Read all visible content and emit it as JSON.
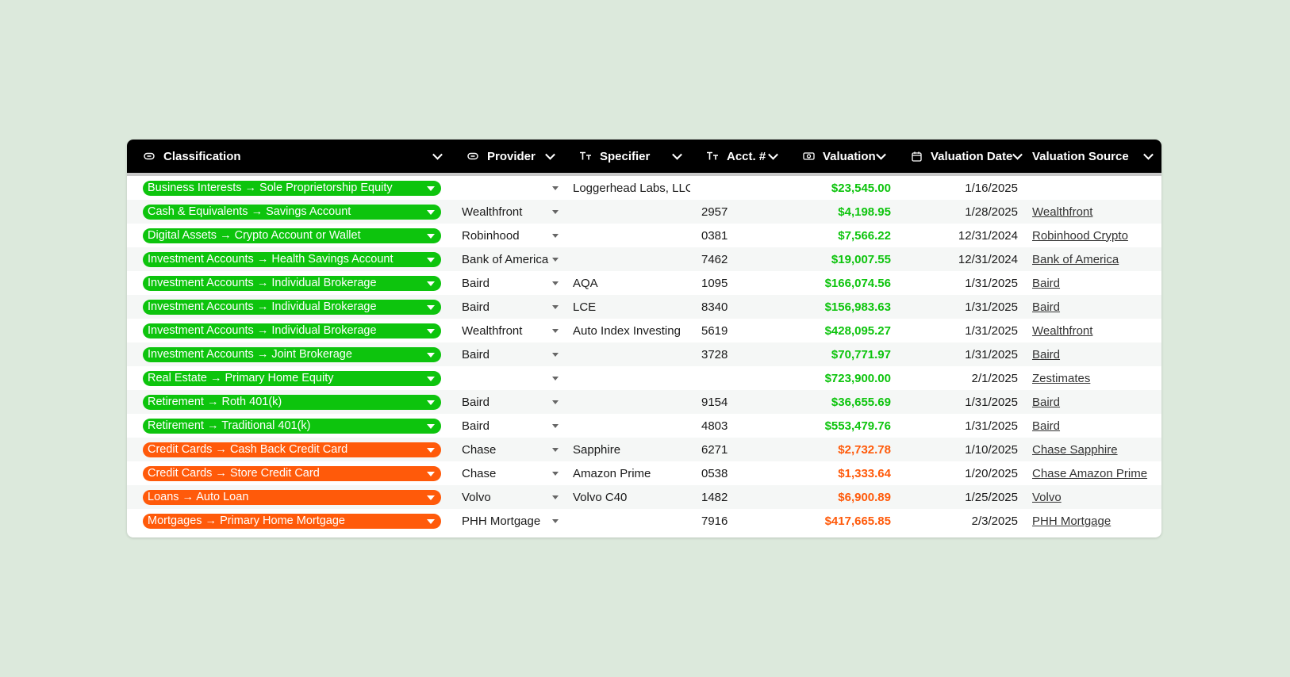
{
  "columns": {
    "classification": {
      "label": "Classification",
      "icon": "link-icon"
    },
    "provider": {
      "label": "Provider",
      "icon": "link-icon"
    },
    "specifier": {
      "label": "Specifier",
      "icon": "text-icon"
    },
    "account": {
      "label": "Acct. #",
      "icon": "text-icon"
    },
    "valuation": {
      "label": "Valuation",
      "icon": "money-icon"
    },
    "valuation_date": {
      "label": "Valuation Date",
      "icon": "calendar-icon"
    },
    "valuation_source": {
      "label": "Valuation Source"
    }
  },
  "colors": {
    "asset": "#0dc40d",
    "liability": "#ff5a0a",
    "header_bg": "#000000",
    "page_bg": "#dce9dc"
  },
  "rows": [
    {
      "classification": "Business Interests → Sole Proprietorship Equity",
      "type": "asset",
      "provider": "",
      "specifier": "Loggerhead Labs, LLC",
      "account": "",
      "valuation": "$23,545.00",
      "date": "1/16/2025",
      "source": ""
    },
    {
      "classification": "Cash & Equivalents → Savings Account",
      "type": "asset",
      "provider": "Wealthfront",
      "specifier": "",
      "account": "2957",
      "valuation": "$4,198.95",
      "date": "1/28/2025",
      "source": "Wealthfront"
    },
    {
      "classification": "Digital Assets → Crypto Account or Wallet",
      "type": "asset",
      "provider": "Robinhood",
      "specifier": "",
      "account": "0381",
      "valuation": "$7,566.22",
      "date": "12/31/2024",
      "source": "Robinhood Crypto"
    },
    {
      "classification": "Investment Accounts → Health Savings Account",
      "type": "asset",
      "provider": "Bank of America",
      "specifier": "",
      "account": "7462",
      "valuation": "$19,007.55",
      "date": "12/31/2024",
      "source": "Bank of America"
    },
    {
      "classification": "Investment Accounts → Individual Brokerage",
      "type": "asset",
      "provider": "Baird",
      "specifier": "AQA",
      "account": "1095",
      "valuation": "$166,074.56",
      "date": "1/31/2025",
      "source": "Baird"
    },
    {
      "classification": "Investment Accounts → Individual Brokerage",
      "type": "asset",
      "provider": "Baird",
      "specifier": "LCE",
      "account": "8340",
      "valuation": "$156,983.63",
      "date": "1/31/2025",
      "source": "Baird"
    },
    {
      "classification": "Investment Accounts → Individual Brokerage",
      "type": "asset",
      "provider": "Wealthfront",
      "specifier": "Auto Index Investing",
      "account": "5619",
      "valuation": "$428,095.27",
      "date": "1/31/2025",
      "source": "Wealthfront"
    },
    {
      "classification": "Investment Accounts → Joint Brokerage",
      "type": "asset",
      "provider": "Baird",
      "specifier": "",
      "account": "3728",
      "valuation": "$70,771.97",
      "date": "1/31/2025",
      "source": "Baird"
    },
    {
      "classification": "Real Estate → Primary Home Equity",
      "type": "asset",
      "provider": "",
      "specifier": "",
      "account": "",
      "valuation": "$723,900.00",
      "date": "2/1/2025",
      "source": "Zestimates"
    },
    {
      "classification": "Retirement → Roth 401(k)",
      "type": "asset",
      "provider": "Baird",
      "specifier": "",
      "account": "9154",
      "valuation": "$36,655.69",
      "date": "1/31/2025",
      "source": "Baird"
    },
    {
      "classification": "Retirement → Traditional 401(k)",
      "type": "asset",
      "provider": "Baird",
      "specifier": "",
      "account": "4803",
      "valuation": "$553,479.76",
      "date": "1/31/2025",
      "source": "Baird"
    },
    {
      "classification": "Credit Cards → Cash Back Credit Card",
      "type": "liability",
      "provider": "Chase",
      "specifier": "Sapphire",
      "account": "6271",
      "valuation": "$2,732.78",
      "date": "1/10/2025",
      "source": "Chase Sapphire"
    },
    {
      "classification": "Credit Cards → Store Credit Card",
      "type": "liability",
      "provider": "Chase",
      "specifier": "Amazon Prime",
      "account": "0538",
      "valuation": "$1,333.64",
      "date": "1/20/2025",
      "source": "Chase Amazon Prime"
    },
    {
      "classification": "Loans → Auto Loan",
      "type": "liability",
      "provider": "Volvo",
      "specifier": "Volvo C40",
      "account": "1482",
      "valuation": "$6,900.89",
      "date": "1/25/2025",
      "source": "Volvo"
    },
    {
      "classification": "Mortgages → Primary Home Mortgage",
      "type": "liability",
      "provider": "PHH Mortgage",
      "specifier": "",
      "account": "7916",
      "valuation": "$417,665.85",
      "date": "2/3/2025",
      "source": "PHH Mortgage"
    }
  ]
}
